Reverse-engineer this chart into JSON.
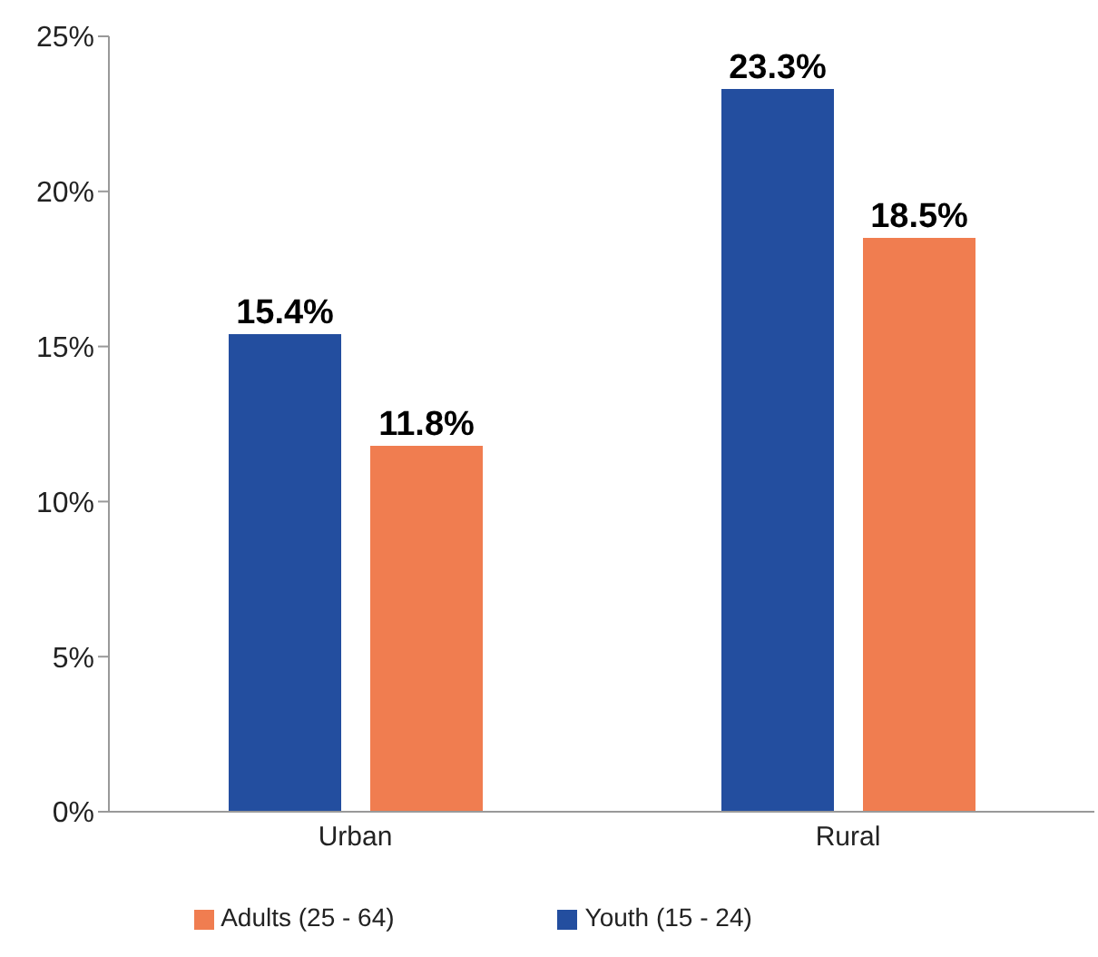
{
  "chart_data": {
    "type": "bar",
    "categories": [
      "Urban",
      "Rural"
    ],
    "series": [
      {
        "name": "Youth (15 - 24)",
        "color": "#234e9f",
        "values": [
          15.4,
          23.3
        ],
        "value_labels": [
          "15.4%",
          "23.3%"
        ]
      },
      {
        "name": "Adults (25 - 64)",
        "color": "#f07d50",
        "values": [
          11.8,
          18.5
        ],
        "value_labels": [
          "11.8%",
          "18.5%"
        ]
      }
    ],
    "ylim": [
      0,
      25
    ],
    "yticks": [
      {
        "value": 0,
        "label": "0%"
      },
      {
        "value": 5,
        "label": "5%"
      },
      {
        "value": 10,
        "label": "10%"
      },
      {
        "value": 15,
        "label": "15%"
      },
      {
        "value": 20,
        "label": "20%"
      },
      {
        "value": 25,
        "label": "25%"
      }
    ],
    "grid": false,
    "legend": "bottom"
  }
}
